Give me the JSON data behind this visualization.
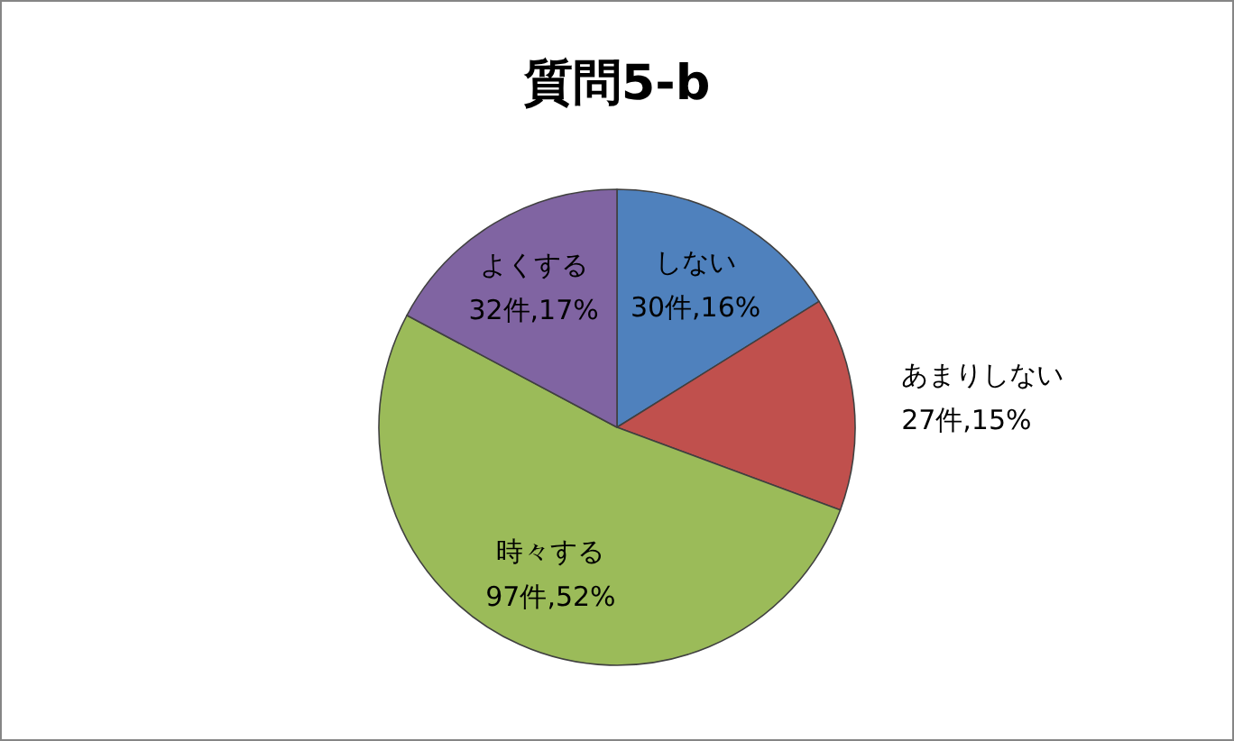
{
  "chart_data": {
    "type": "pie",
    "title": "質問5-b",
    "categories": [
      "しない",
      "あまりしない",
      "時々する",
      "よくする"
    ],
    "values": [
      30,
      27,
      97,
      32
    ],
    "value_labels": [
      "30件,16%",
      "27件,15%",
      "97件,52%",
      "32件,17%"
    ],
    "colors": [
      "#4f81bd",
      "#c0504d",
      "#9bbb59",
      "#8064a2"
    ]
  }
}
